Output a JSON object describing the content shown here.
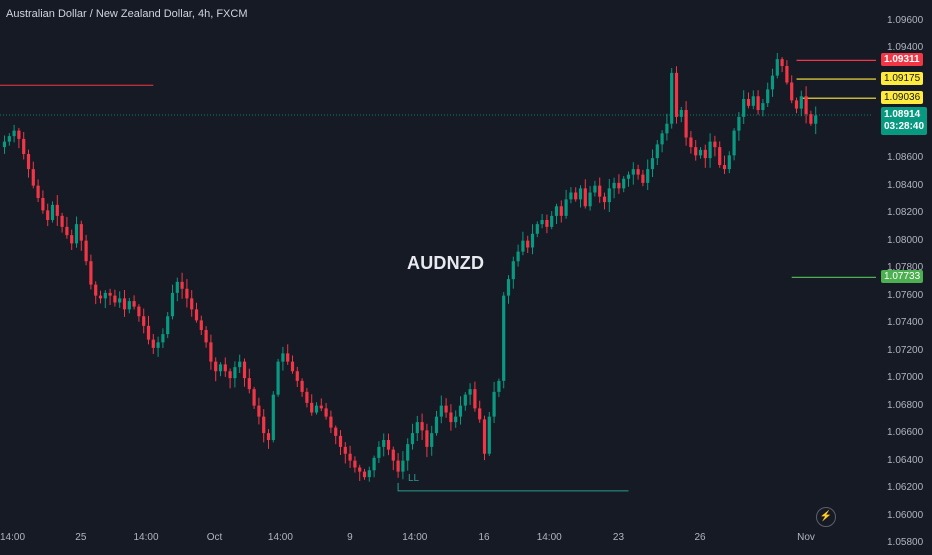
{
  "header": {
    "title": "Australian Dollar / New Zealand Dollar, 4h, FXCM"
  },
  "watermark": "AUDNZD",
  "annotation_ll": "LL",
  "colors": {
    "background": "#161a25",
    "up": "#089981",
    "down": "#f23645",
    "resistance": "#f23645",
    "target": "#ffeb3b",
    "support": "#4caf50",
    "ll_line": "#2a9d8f"
  },
  "icons": {
    "lightning": "lightning-icon"
  },
  "chart_data": {
    "type": "candlestick",
    "symbol": "AUDNZD",
    "interval": "4h",
    "ylim": [
      1.0575,
      1.0975
    ],
    "grid": false,
    "y_ticks": [
      "1.09600",
      "1.09400",
      "1.08600",
      "1.08400",
      "1.08200",
      "1.08000",
      "1.07800",
      "1.07600",
      "1.07400",
      "1.07200",
      "1.07000",
      "1.06800",
      "1.06600",
      "1.06400",
      "1.06200",
      "1.06000",
      "1.05800"
    ],
    "y_tick_values": [
      1.096,
      1.094,
      1.086,
      1.084,
      1.082,
      1.08,
      1.078,
      1.076,
      1.074,
      1.072,
      1.07,
      1.068,
      1.066,
      1.064,
      1.062,
      1.06,
      1.058
    ],
    "x_ticks": [
      {
        "label": "14:00",
        "index": 1
      },
      {
        "label": "25",
        "index": 16
      },
      {
        "label": "14:00",
        "index": 30
      },
      {
        "label": "Oct",
        "index": 44
      },
      {
        "label": "14:00",
        "index": 58
      },
      {
        "label": "9",
        "index": 72
      },
      {
        "label": "14:00",
        "index": 86
      },
      {
        "label": "16",
        "index": 100
      },
      {
        "label": "14:00",
        "index": 114
      },
      {
        "label": "23",
        "index": 128
      },
      {
        "label": "26",
        "index": 145
      },
      {
        "label": "Nov",
        "index": 167
      }
    ],
    "levels": [
      {
        "label": "1.09311",
        "value": 1.09311,
        "kind": "resistance",
        "line_from_index": 165
      },
      {
        "label": "1.09175",
        "value": 1.09175,
        "kind": "target",
        "line_from_index": 165
      },
      {
        "label": "1.09036",
        "value": 1.09036,
        "kind": "target",
        "line_from_index": 166
      },
      {
        "label": "1.07733",
        "value": 1.07733,
        "kind": "support",
        "line_from_index": 164
      }
    ],
    "left_line": {
      "value": 1.0913,
      "from_index": 0,
      "to_index": 31
    },
    "ll_line": {
      "value": 1.0618,
      "from_index": 82,
      "to_index": 130
    },
    "current_price": {
      "value": 1.08914,
      "label": "1.08914",
      "countdown": "03:28:40"
    },
    "closes": [
      1.0872,
      1.0876,
      1.088,
      1.0874,
      1.0863,
      1.0852,
      1.084,
      1.0831,
      1.0822,
      1.0815,
      1.0826,
      1.0818,
      1.081,
      1.0804,
      1.0798,
      1.0812,
      1.08,
      1.0785,
      1.0768,
      1.076,
      1.0758,
      1.0762,
      1.076,
      1.0755,
      1.0758,
      1.075,
      1.0756,
      1.0752,
      1.0745,
      1.0738,
      1.0728,
      1.0722,
      1.0726,
      1.0732,
      1.0745,
      1.0762,
      1.077,
      1.0765,
      1.0758,
      1.075,
      1.0742,
      1.0735,
      1.0726,
      1.0712,
      1.0705,
      1.071,
      1.0705,
      1.07,
      1.0708,
      1.0712,
      1.07,
      1.0692,
      1.068,
      1.0672,
      1.066,
      1.0655,
      1.0688,
      1.0712,
      1.0718,
      1.0712,
      1.0705,
      1.0698,
      1.069,
      1.0682,
      1.0675,
      1.068,
      1.0678,
      1.0672,
      1.0664,
      1.0658,
      1.065,
      1.0645,
      1.064,
      1.0635,
      1.0632,
      1.0628,
      1.0633,
      1.0642,
      1.065,
      1.0655,
      1.0648,
      1.064,
      1.0632,
      1.064,
      1.0652,
      1.066,
      1.0668,
      1.0662,
      1.065,
      1.066,
      1.0672,
      1.068,
      1.0675,
      1.0668,
      1.0672,
      1.068,
      1.0688,
      1.0692,
      1.0678,
      1.067,
      1.0645,
      1.0672,
      1.069,
      1.0698,
      1.076,
      1.0772,
      1.0785,
      1.0792,
      1.08,
      1.0795,
      1.0805,
      1.0812,
      1.0815,
      1.081,
      1.0818,
      1.0825,
      1.0818,
      1.083,
      1.0835,
      1.083,
      1.0838,
      1.0825,
      1.0835,
      1.084,
      1.0832,
      1.0828,
      1.0838,
      1.0842,
      1.0838,
      1.0845,
      1.0848,
      1.0852,
      1.0848,
      1.0842,
      1.0852,
      1.086,
      1.087,
      1.0878,
      1.0885,
      1.0922,
      1.089,
      1.0895,
      1.0875,
      1.0868,
      1.0862,
      1.0866,
      1.086,
      1.0872,
      1.0868,
      1.0855,
      1.0852,
      1.0862,
      1.088,
      1.089,
      1.0903,
      1.0898,
      1.0905,
      1.0895,
      1.09,
      1.091,
      1.092,
      1.0932,
      1.0927,
      1.0915,
      1.0902,
      1.0896,
      1.0905,
      1.0892,
      1.0885,
      1.0891
    ]
  }
}
